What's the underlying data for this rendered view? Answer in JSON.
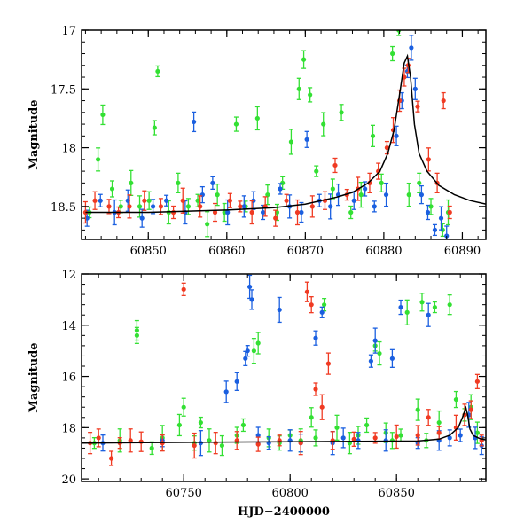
{
  "chart_data": [
    {
      "type": "scatter",
      "title": "",
      "xlabel": "",
      "ylabel": "Magnitude",
      "xlim": [
        60841.5,
        60893
      ],
      "ylim": [
        18.78,
        17.0
      ],
      "y_inverted": true,
      "x_ticks": [
        60850,
        60860,
        60870,
        60880,
        60890
      ],
      "y_ticks": [
        17,
        17.5,
        18,
        18.5
      ],
      "colors": {
        "green": "#33e033",
        "blue": "#1a5fe0",
        "red": "#f03a22",
        "model": "#000000"
      },
      "series": [
        {
          "color": "green",
          "points": [
            [
              60842.5,
              18.55
            ],
            [
              60843.6,
              18.1
            ],
            [
              60844.2,
              17.72
            ],
            [
              60845.4,
              18.35
            ],
            [
              60846.5,
              18.5
            ],
            [
              60847.8,
              18.3
            ],
            [
              60848.9,
              18.5
            ],
            [
              60850.1,
              18.45
            ],
            [
              60850.8,
              17.83
            ],
            [
              60851.2,
              17.35
            ],
            [
              60852.6,
              18.55
            ],
            [
              60853.8,
              18.3
            ],
            [
              60855.1,
              18.5
            ],
            [
              60856.3,
              18.45
            ],
            [
              60857.5,
              18.65
            ],
            [
              60858.8,
              18.4
            ],
            [
              60859.7,
              18.55
            ],
            [
              60861.2,
              17.8
            ],
            [
              60862.4,
              18.5
            ],
            [
              60863.9,
              17.75
            ],
            [
              60865.2,
              18.4
            ],
            [
              60866.4,
              18.55
            ],
            [
              60867.1,
              18.3
            ],
            [
              60868.2,
              17.95
            ],
            [
              60869.2,
              17.5
            ],
            [
              60869.8,
              17.25
            ],
            [
              60870.6,
              17.55
            ],
            [
              60871.4,
              18.2
            ],
            [
              60872.3,
              17.8
            ],
            [
              60873.5,
              18.35
            ],
            [
              60874.6,
              17.7
            ],
            [
              60875.8,
              18.55
            ],
            [
              60877.1,
              18.4
            ],
            [
              60878.6,
              17.9
            ],
            [
              60879.7,
              18.3
            ],
            [
              60881.1,
              17.2
            ],
            [
              60881.9,
              17.0
            ],
            [
              60883.2,
              18.4
            ],
            [
              60884.5,
              18.3
            ],
            [
              60886.0,
              18.5
            ],
            [
              60887.5,
              18.7
            ],
            [
              60888.2,
              18.55
            ]
          ]
        },
        {
          "color": "blue",
          "points": [
            [
              60842.2,
              18.6
            ],
            [
              60843.9,
              18.45
            ],
            [
              60845.7,
              18.55
            ],
            [
              60847.4,
              18.45
            ],
            [
              60849.2,
              18.6
            ],
            [
              60850.6,
              18.5
            ],
            [
              60852.3,
              18.45
            ],
            [
              60854.7,
              18.55
            ],
            [
              60855.8,
              17.78
            ],
            [
              60856.9,
              18.4
            ],
            [
              60858.2,
              18.3
            ],
            [
              60860.1,
              18.55
            ],
            [
              60862.2,
              18.5
            ],
            [
              60863.4,
              18.45
            ],
            [
              60864.6,
              18.55
            ],
            [
              60866.8,
              18.35
            ],
            [
              60868.0,
              18.5
            ],
            [
              60869.5,
              18.55
            ],
            [
              60870.2,
              17.93
            ],
            [
              60871.8,
              18.45
            ],
            [
              60873.2,
              18.5
            ],
            [
              60874.2,
              18.4
            ],
            [
              60876.2,
              18.45
            ],
            [
              60877.6,
              18.35
            ],
            [
              60878.8,
              18.5
            ],
            [
              60880.3,
              18.4
            ],
            [
              60881.6,
              17.9
            ],
            [
              60882.3,
              17.6
            ],
            [
              60883.0,
              17.35
            ],
            [
              60883.5,
              17.15
            ],
            [
              60884.0,
              17.5
            ],
            [
              60884.8,
              18.4
            ],
            [
              60885.6,
              18.55
            ],
            [
              60886.5,
              18.7
            ],
            [
              60887.3,
              18.6
            ],
            [
              60888.0,
              18.75
            ]
          ]
        },
        {
          "color": "red",
          "points": [
            [
              60842.0,
              18.55
            ],
            [
              60843.2,
              18.45
            ],
            [
              60845.0,
              18.5
            ],
            [
              60846.2,
              18.55
            ],
            [
              60847.6,
              18.5
            ],
            [
              60849.5,
              18.45
            ],
            [
              60851.6,
              18.5
            ],
            [
              60853.2,
              18.55
            ],
            [
              60854.4,
              18.45
            ],
            [
              60856.6,
              18.5
            ],
            [
              60858.5,
              18.55
            ],
            [
              60860.4,
              18.45
            ],
            [
              60861.7,
              18.5
            ],
            [
              60863.2,
              18.55
            ],
            [
              60864.9,
              18.5
            ],
            [
              60866.2,
              18.6
            ],
            [
              60867.6,
              18.45
            ],
            [
              60869.0,
              18.55
            ],
            [
              60870.9,
              18.5
            ],
            [
              60872.5,
              18.45
            ],
            [
              60873.8,
              18.15
            ],
            [
              60875.3,
              18.4
            ],
            [
              60876.7,
              18.35
            ],
            [
              60878.2,
              18.3
            ],
            [
              60879.3,
              18.2
            ],
            [
              60880.4,
              18.0
            ],
            [
              60881.2,
              17.85
            ],
            [
              60882.0,
              17.6
            ],
            [
              60882.6,
              17.4
            ],
            [
              60883.1,
              17.3
            ],
            [
              60884.3,
              17.65
            ],
            [
              60885.7,
              18.1
            ],
            [
              60886.8,
              18.3
            ],
            [
              60887.6,
              17.6
            ],
            [
              60888.4,
              18.55
            ]
          ]
        }
      ],
      "model": {
        "x": [
          60842,
          60850,
          60860,
          60866,
          60870,
          60874,
          60876,
          60878,
          60879.5,
          60880.5,
          60881.3,
          60882,
          60882.6,
          60883,
          60883.4,
          60883.9,
          60884.5,
          60885.5,
          60887,
          60889,
          60891,
          60893
        ],
        "y": [
          18.55,
          18.55,
          18.53,
          18.51,
          18.48,
          18.42,
          18.38,
          18.3,
          18.2,
          18.05,
          17.85,
          17.55,
          17.28,
          17.22,
          17.4,
          17.8,
          18.05,
          18.2,
          18.32,
          18.4,
          18.45,
          18.48
        ]
      }
    },
    {
      "type": "scatter",
      "title": "",
      "xlabel": "HJD−2400000",
      "ylabel": "Magnitude",
      "xlim": [
        60702,
        60892
      ],
      "ylim": [
        20.1,
        12.0
      ],
      "y_inverted": true,
      "x_ticks": [
        60750,
        60800,
        60850
      ],
      "y_ticks": [
        12,
        14,
        16,
        18,
        20
      ],
      "series": [
        {
          "color": "green",
          "points": [
            [
              60708,
              18.6
            ],
            [
              60720,
              18.5
            ],
            [
              60728,
              14.2
            ],
            [
              60728,
              14.4
            ],
            [
              60735,
              18.8
            ],
            [
              60740,
              18.4
            ],
            [
              60748,
              17.9
            ],
            [
              60750,
              17.2
            ],
            [
              60755,
              18.6
            ],
            [
              60758,
              17.8
            ],
            [
              60762,
              18.5
            ],
            [
              60768,
              18.7
            ],
            [
              60775,
              18.3
            ],
            [
              60778,
              17.9
            ],
            [
              60783,
              15.0
            ],
            [
              60785,
              14.7
            ],
            [
              60790,
              18.4
            ],
            [
              60795,
              18.6
            ],
            [
              60800,
              18.3
            ],
            [
              60805,
              18.5
            ],
            [
              60810,
              17.6
            ],
            [
              60812,
              18.4
            ],
            [
              60816,
              13.2
            ],
            [
              60822,
              18.0
            ],
            [
              60828,
              18.6
            ],
            [
              60832,
              18.3
            ],
            [
              60836,
              17.9
            ],
            [
              60840,
              14.8
            ],
            [
              60842,
              15.1
            ],
            [
              60845,
              18.2
            ],
            [
              60848,
              18.5
            ],
            [
              60852,
              18.3
            ],
            [
              60855,
              13.5
            ],
            [
              60860,
              17.3
            ],
            [
              60862,
              13.1
            ],
            [
              60864,
              18.5
            ],
            [
              60868,
              13.3
            ],
            [
              60870,
              17.8
            ],
            [
              60875,
              13.2
            ],
            [
              60878,
              16.9
            ],
            [
              60882,
              17.5
            ],
            [
              60885,
              17.2
            ],
            [
              60888,
              18.2
            ]
          ]
        },
        {
          "color": "blue",
          "points": [
            [
              60712,
              18.6
            ],
            [
              60740,
              18.5
            ],
            [
              60758,
              18.6
            ],
            [
              60770,
              16.6
            ],
            [
              60775,
              16.2
            ],
            [
              60779,
              15.3
            ],
            [
              60780,
              15.0
            ],
            [
              60781,
              12.5
            ],
            [
              60782,
              13.0
            ],
            [
              60785,
              18.3
            ],
            [
              60790,
              18.6
            ],
            [
              60795,
              13.4
            ],
            [
              60800,
              18.5
            ],
            [
              60805,
              18.6
            ],
            [
              60812,
              14.5
            ],
            [
              60815,
              13.5
            ],
            [
              60820,
              18.6
            ],
            [
              60825,
              18.4
            ],
            [
              60832,
              18.5
            ],
            [
              60838,
              15.4
            ],
            [
              60840,
              14.6
            ],
            [
              60845,
              18.5
            ],
            [
              60848,
              15.3
            ],
            [
              60852,
              13.3
            ],
            [
              60860,
              18.6
            ],
            [
              60865,
              13.6
            ],
            [
              60870,
              18.5
            ],
            [
              60875,
              18.4
            ],
            [
              60880,
              18.3
            ],
            [
              60884,
              17.5
            ],
            [
              60887,
              18.4
            ],
            [
              60890,
              18.7
            ]
          ]
        },
        {
          "color": "red",
          "points": [
            [
              60706,
              18.6
            ],
            [
              60710,
              18.4
            ],
            [
              60716,
              19.2
            ],
            [
              60720,
              18.6
            ],
            [
              60725,
              18.5
            ],
            [
              60730,
              18.55
            ],
            [
              60740,
              18.6
            ],
            [
              60750,
              12.6
            ],
            [
              60755,
              18.7
            ],
            [
              60765,
              18.6
            ],
            [
              60775,
              18.5
            ],
            [
              60785,
              18.65
            ],
            [
              60795,
              18.5
            ],
            [
              60805,
              18.6
            ],
            [
              60808,
              12.7
            ],
            [
              60810,
              13.2
            ],
            [
              60812,
              16.5
            ],
            [
              60815,
              17.2
            ],
            [
              60818,
              15.5
            ],
            [
              60820,
              18.5
            ],
            [
              60830,
              18.45
            ],
            [
              60840,
              18.4
            ],
            [
              60850,
              18.35
            ],
            [
              60860,
              18.3
            ],
            [
              60865,
              17.6
            ],
            [
              60870,
              18.2
            ],
            [
              60878,
              18.0
            ],
            [
              60882,
              17.5
            ],
            [
              60885,
              17.3
            ],
            [
              60888,
              16.2
            ],
            [
              60890,
              18.5
            ]
          ]
        }
      ],
      "model": {
        "x": [
          60702,
          60800,
          60860,
          60870,
          60875,
          60879,
          60881,
          60882.6,
          60883.4,
          60884.5,
          60886,
          60889,
          60892
        ],
        "y": [
          18.6,
          18.55,
          18.52,
          18.45,
          18.3,
          18.0,
          17.6,
          17.22,
          17.5,
          18.05,
          18.3,
          18.42,
          18.48
        ]
      }
    }
  ]
}
